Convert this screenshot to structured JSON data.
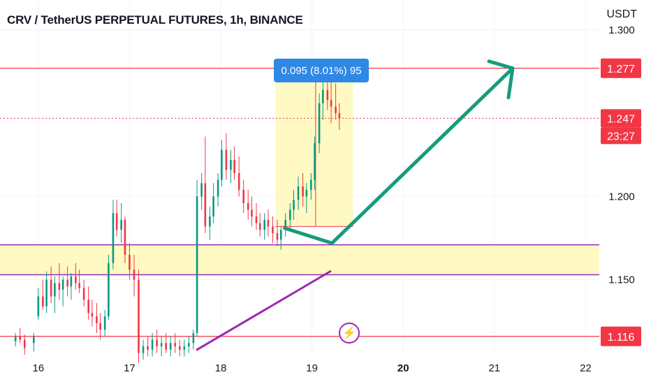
{
  "header": {
    "title": "CRV / TetherUS PERPETUAL FUTURES, 1h, BINANCE",
    "currency": "USDT"
  },
  "measure": {
    "label": "0.095 (8.01%) 95"
  },
  "price_badges": {
    "resistance": "1.277",
    "current": "1.247",
    "countdown": "23:27",
    "support": "1.116"
  },
  "icons": {
    "flash": "lightning-icon"
  },
  "colors": {
    "up": "#089981",
    "down": "#f23645",
    "support_zone_line": "#9c27b0",
    "zone_fill": "#fff9c4",
    "resistance_line": "#f23645",
    "forecast_arrow": "#169c7c",
    "measure_blue": "#2f88e6"
  },
  "chart_data": {
    "type": "candlestick",
    "symbol": "CRV / TetherUS PERPETUAL FUTURES",
    "interval": "1h",
    "exchange": "BINANCE",
    "x_ticks": [
      "16",
      "17",
      "18",
      "19",
      "20",
      "21",
      "22"
    ],
    "y_ticks": [
      "1.300",
      "1.200",
      "1.150"
    ],
    "ylim": [
      1.105,
      1.318
    ],
    "xlim": [
      15.58,
      22.15
    ],
    "levels": [
      {
        "name": "resistance",
        "price": 1.277
      },
      {
        "name": "last",
        "price": 1.247
      },
      {
        "name": "support",
        "price": 1.116
      }
    ],
    "zone": {
      "low": 1.153,
      "high": 1.171
    },
    "measure": {
      "from_time": 18.6,
      "to_time": 19.45,
      "low": 1.182,
      "high": 1.277,
      "change": "0.095 (8.01%) 95"
    },
    "trendline": [
      [
        17.74,
        1.108
      ],
      [
        19.2,
        1.155
      ]
    ],
    "forecast_path": [
      [
        18.7,
        1.181
      ],
      [
        19.22,
        1.172
      ],
      [
        21.2,
        1.277
      ]
    ],
    "candles": [
      [
        15.75,
        1.113,
        1.118,
        1.11,
        1.116
      ],
      [
        15.8,
        1.116,
        1.121,
        1.112,
        1.114
      ],
      [
        15.85,
        1.114,
        1.117,
        1.105,
        1.109
      ],
      [
        15.95,
        1.112,
        1.118,
        1.107,
        1.116
      ],
      [
        16.0,
        1.128,
        1.145,
        1.126,
        1.14
      ],
      [
        16.05,
        1.14,
        1.15,
        1.132,
        1.134
      ],
      [
        16.09,
        1.134,
        1.155,
        1.13,
        1.15
      ],
      [
        16.14,
        1.15,
        1.158,
        1.136,
        1.14
      ],
      [
        16.18,
        1.14,
        1.152,
        1.13,
        1.148
      ],
      [
        16.23,
        1.148,
        1.16,
        1.138,
        1.144
      ],
      [
        16.27,
        1.144,
        1.152,
        1.134,
        1.15
      ],
      [
        16.32,
        1.15,
        1.158,
        1.14,
        1.146
      ],
      [
        16.36,
        1.146,
        1.154,
        1.138,
        1.152
      ],
      [
        16.41,
        1.152,
        1.16,
        1.144,
        1.148
      ],
      [
        16.45,
        1.148,
        1.156,
        1.142,
        1.145
      ],
      [
        16.5,
        1.145,
        1.15,
        1.134,
        1.138
      ],
      [
        16.55,
        1.138,
        1.146,
        1.126,
        1.13
      ],
      [
        16.59,
        1.13,
        1.138,
        1.122,
        1.128
      ],
      [
        16.64,
        1.128,
        1.136,
        1.118,
        1.124
      ],
      [
        16.68,
        1.124,
        1.13,
        1.114,
        1.12
      ],
      [
        16.73,
        1.12,
        1.132,
        1.116,
        1.128
      ],
      [
        16.77,
        1.128,
        1.165,
        1.126,
        1.16
      ],
      [
        16.82,
        1.16,
        1.198,
        1.156,
        1.19
      ],
      [
        16.86,
        1.19,
        1.198,
        1.176,
        1.18
      ],
      [
        16.91,
        1.18,
        1.196,
        1.172,
        1.186
      ],
      [
        16.95,
        1.186,
        1.188,
        1.16,
        1.165
      ],
      [
        17.0,
        1.165,
        1.172,
        1.15,
        1.156
      ],
      [
        17.05,
        1.156,
        1.165,
        1.14,
        1.15
      ],
      [
        17.1,
        1.15,
        1.156,
        1.1,
        1.106
      ],
      [
        17.15,
        1.106,
        1.114,
        1.102,
        1.11
      ],
      [
        17.2,
        1.11,
        1.116,
        1.104,
        1.108
      ],
      [
        17.25,
        1.108,
        1.118,
        1.104,
        1.114
      ],
      [
        17.3,
        1.114,
        1.12,
        1.106,
        1.11
      ],
      [
        17.35,
        1.11,
        1.116,
        1.104,
        1.112
      ],
      [
        17.4,
        1.112,
        1.118,
        1.106,
        1.108
      ],
      [
        17.45,
        1.108,
        1.116,
        1.104,
        1.112
      ],
      [
        17.5,
        1.112,
        1.118,
        1.106,
        1.11
      ],
      [
        17.55,
        1.11,
        1.114,
        1.104,
        1.108
      ],
      [
        17.6,
        1.108,
        1.114,
        1.104,
        1.11
      ],
      [
        17.65,
        1.11,
        1.116,
        1.106,
        1.112
      ],
      [
        17.7,
        1.112,
        1.12,
        1.108,
        1.118
      ],
      [
        17.74,
        1.118,
        1.21,
        1.116,
        1.2
      ],
      [
        17.79,
        1.2,
        1.214,
        1.192,
        1.208
      ],
      [
        17.83,
        1.208,
        1.236,
        1.178,
        1.182
      ],
      [
        17.88,
        1.182,
        1.194,
        1.174,
        1.188
      ],
      [
        17.92,
        1.188,
        1.208,
        1.184,
        1.2
      ],
      [
        17.97,
        1.2,
        1.214,
        1.194,
        1.21
      ],
      [
        18.01,
        1.21,
        1.234,
        1.206,
        1.228
      ],
      [
        18.06,
        1.228,
        1.238,
        1.21,
        1.216
      ],
      [
        18.11,
        1.216,
        1.228,
        1.208,
        1.222
      ],
      [
        18.15,
        1.222,
        1.23,
        1.21,
        1.214
      ],
      [
        18.2,
        1.214,
        1.224,
        1.2,
        1.204
      ],
      [
        18.25,
        1.204,
        1.21,
        1.19,
        1.196
      ],
      [
        18.3,
        1.196,
        1.204,
        1.186,
        1.192
      ],
      [
        18.34,
        1.192,
        1.2,
        1.182,
        1.188
      ],
      [
        18.39,
        1.188,
        1.196,
        1.18,
        1.184
      ],
      [
        18.43,
        1.184,
        1.19,
        1.176,
        1.18
      ],
      [
        18.48,
        1.18,
        1.19,
        1.174,
        1.186
      ],
      [
        18.52,
        1.186,
        1.192,
        1.176,
        1.182
      ],
      [
        18.57,
        1.182,
        1.188,
        1.172,
        1.178
      ],
      [
        18.62,
        1.178,
        1.186,
        1.17,
        1.174
      ],
      [
        18.66,
        1.174,
        1.182,
        1.168,
        1.18
      ],
      [
        18.71,
        1.18,
        1.19,
        1.176,
        1.186
      ],
      [
        18.76,
        1.186,
        1.196,
        1.18,
        1.192
      ],
      [
        18.8,
        1.192,
        1.204,
        1.186,
        1.198
      ],
      [
        18.85,
        1.198,
        1.212,
        1.192,
        1.206
      ],
      [
        18.9,
        1.206,
        1.214,
        1.194,
        1.2
      ],
      [
        18.94,
        1.2,
        1.208,
        1.19,
        1.204
      ],
      [
        18.99,
        1.204,
        1.214,
        1.198,
        1.21
      ],
      [
        19.03,
        1.21,
        1.236,
        1.204,
        1.232
      ],
      [
        19.08,
        1.232,
        1.262,
        1.226,
        1.256
      ],
      [
        19.12,
        1.256,
        1.272,
        1.246,
        1.264
      ],
      [
        19.17,
        1.264,
        1.276,
        1.252,
        1.258
      ],
      [
        19.21,
        1.258,
        1.272,
        1.244,
        1.254
      ],
      [
        19.26,
        1.254,
        1.268,
        1.246,
        1.25
      ],
      [
        19.3,
        1.25,
        1.256,
        1.24,
        1.247
      ]
    ]
  }
}
